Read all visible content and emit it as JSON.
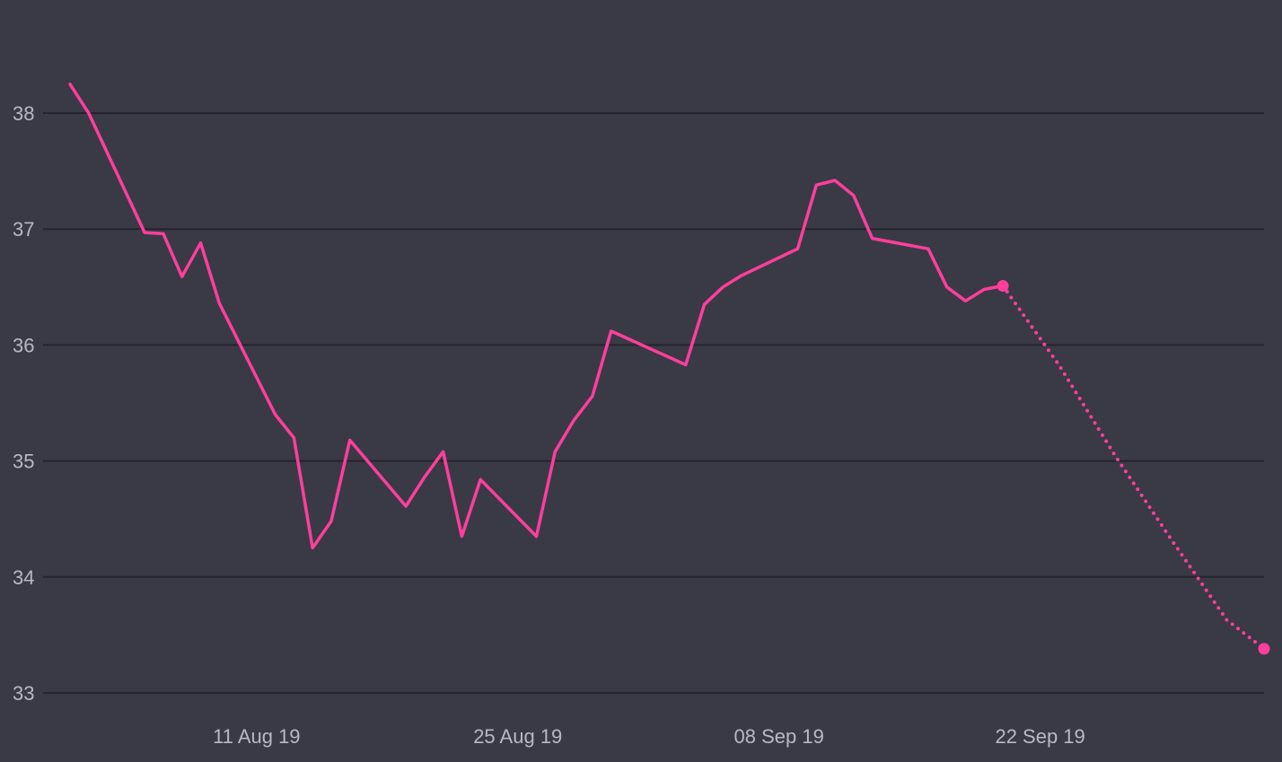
{
  "chart_data": {
    "type": "line",
    "title": "",
    "xlabel": "",
    "ylabel": "",
    "ylim": [
      33,
      38.55
    ],
    "xlim": [
      "2019-08-01",
      "2019-10-04"
    ],
    "y_ticks": [
      33,
      34,
      35,
      36,
      37,
      38
    ],
    "y_tick_labels": [
      "33",
      "34",
      "35",
      "36",
      "37",
      "38"
    ],
    "x_ticks": [
      "2019-08-11",
      "2019-08-25",
      "2019-09-08",
      "2019-09-22"
    ],
    "x_tick_labels": [
      "11 Aug 19",
      "25 Aug 19",
      "08 Sep 19",
      "22 Sep 19"
    ],
    "grid": true,
    "legend": "none",
    "colors": {
      "background": "#3a3946",
      "grid": "#25242e",
      "line": "#ff3f9b",
      "tick_text": "#b9b8c6"
    },
    "series": [
      {
        "style": "solid",
        "x": [
          "2019-08-01",
          "2019-08-02",
          "2019-08-05",
          "2019-08-06",
          "2019-08-07",
          "2019-08-08",
          "2019-08-09",
          "2019-08-12",
          "2019-08-13",
          "2019-08-14",
          "2019-08-15",
          "2019-08-16",
          "2019-08-19",
          "2019-08-20",
          "2019-08-21",
          "2019-08-22",
          "2019-08-23",
          "2019-08-26",
          "2019-08-27",
          "2019-08-28",
          "2019-08-29",
          "2019-08-30",
          "2019-09-03",
          "2019-09-04",
          "2019-09-05",
          "2019-09-06",
          "2019-09-09",
          "2019-09-10",
          "2019-09-11",
          "2019-09-12",
          "2019-09-13",
          "2019-09-16",
          "2019-09-17",
          "2019-09-18",
          "2019-09-19",
          "2019-09-20"
        ],
        "y": [
          38.25,
          38.0,
          36.97,
          36.96,
          36.59,
          36.88,
          36.36,
          35.4,
          35.2,
          34.25,
          34.48,
          35.18,
          34.61,
          34.86,
          35.08,
          34.35,
          34.84,
          34.35,
          35.08,
          35.35,
          35.56,
          36.12,
          35.83,
          36.35,
          36.5,
          36.6,
          36.83,
          37.38,
          37.42,
          37.29,
          36.92,
          36.83,
          36.5,
          36.38,
          36.48,
          36.51
        ]
      },
      {
        "style": "dotted",
        "x": [
          "2019-09-20",
          "2019-09-23",
          "2019-09-26",
          "2019-09-29",
          "2019-10-02",
          "2019-10-04"
        ],
        "y": [
          36.51,
          35.83,
          35.05,
          34.33,
          33.63,
          33.38
        ]
      }
    ]
  }
}
